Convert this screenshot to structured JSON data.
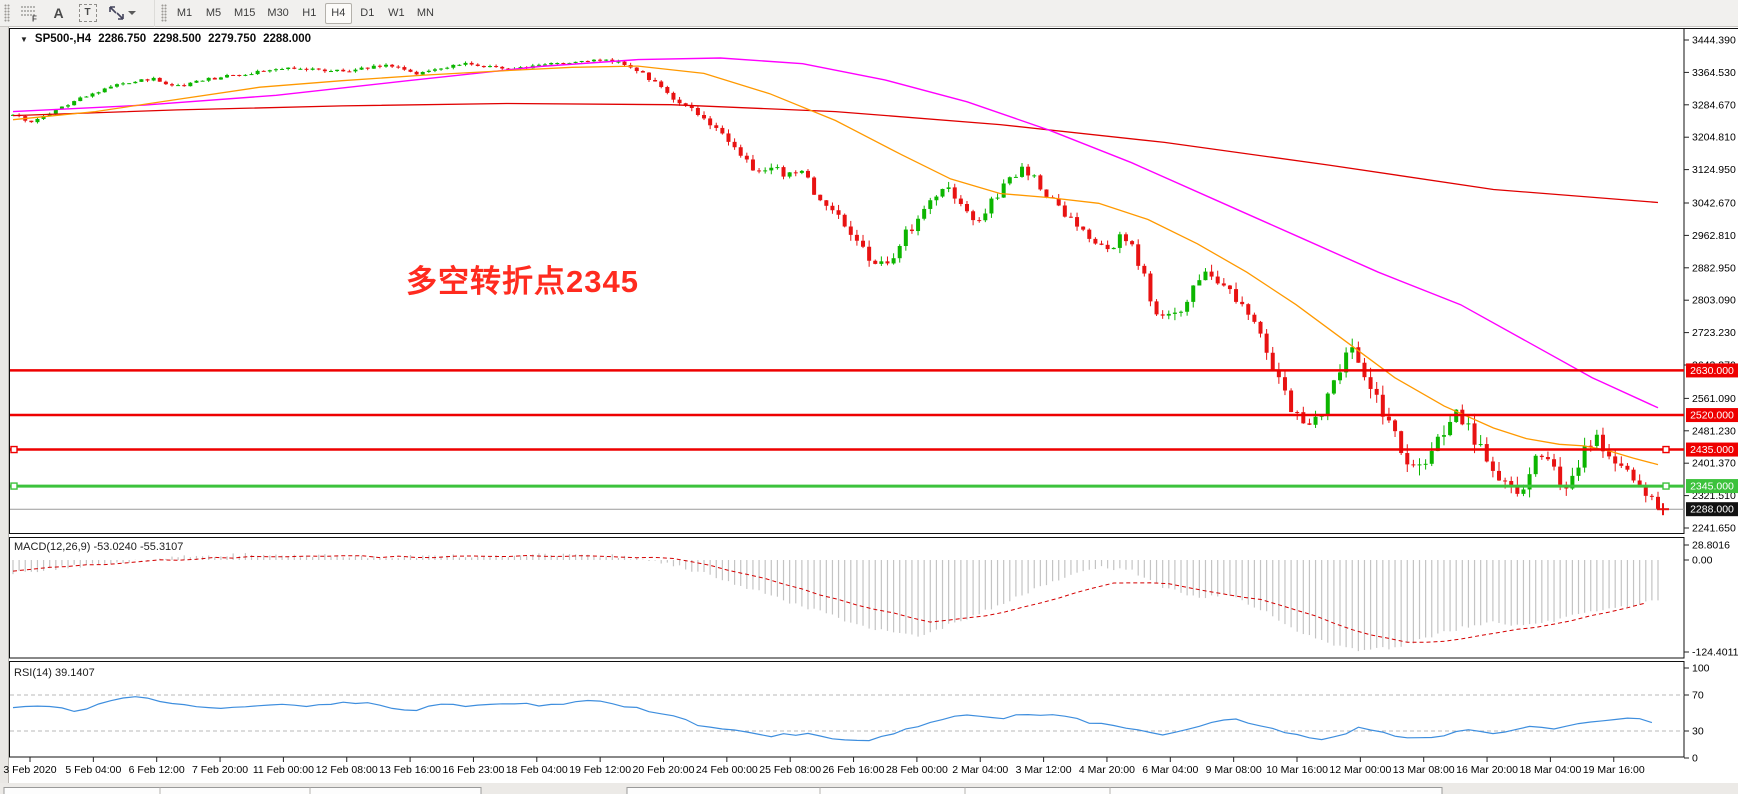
{
  "toolbar": {
    "tools": [
      {
        "name": "fibonacci",
        "glyph": "F"
      },
      {
        "name": "text",
        "glyph": "A"
      },
      {
        "name": "text-label",
        "glyph": "T"
      },
      {
        "name": "arrows",
        "glyph": ""
      }
    ],
    "timeframes": [
      "M1",
      "M5",
      "M15",
      "M30",
      "H1",
      "H4",
      "D1",
      "W1",
      "MN"
    ],
    "active_timeframe": "H4"
  },
  "chart": {
    "header": {
      "expander_glyph": "▼",
      "symbol_tf": "SP500-,H4",
      "open": "2286.750",
      "high": "2298.500",
      "low": "2279.750",
      "close": "2288.000"
    },
    "annotation": {
      "text": "多空转折点2345",
      "color": "#ff2b1f"
    },
    "macd_header": {
      "name": "MACD(12,26,9)",
      "value": "-53.0240",
      "signal": "-55.3107"
    },
    "rsi_header": {
      "name": "RSI(14)",
      "value": "39.1407"
    }
  },
  "chart_data": {
    "type": "candlestick-with-indicators",
    "symbol": "SP500-",
    "timeframe": "H4",
    "bars": 270,
    "ohlc_current": {
      "open": 2286.75,
      "high": 2298.5,
      "low": 2279.75,
      "close": 2288.0
    },
    "y_axis": {
      "top_value": 3444.39,
      "bottom_value": 2241.65,
      "labels": [
        3444.39,
        3364.53,
        3284.67,
        3204.81,
        3124.95,
        3042.67,
        2962.81,
        2882.95,
        2803.09,
        2723.23,
        2643.37,
        2561.09,
        2481.23,
        2401.37,
        2321.51,
        2241.65
      ]
    },
    "time_axis": {
      "labels": [
        "3 Feb 2020",
        "5 Feb 04:00",
        "6 Feb 12:00",
        "7 Feb 20:00",
        "11 Feb 00:00",
        "12 Feb 08:00",
        "13 Feb 16:00",
        "16 Feb 23:00",
        "18 Feb 04:00",
        "19 Feb 12:00",
        "20 Feb 20:00",
        "24 Feb 00:00",
        "25 Feb 08:00",
        "26 Feb 16:00",
        "28 Feb 00:00",
        "2 Mar 04:00",
        "3 Mar 12:00",
        "4 Mar 20:00",
        "6 Mar 04:00",
        "9 Mar 08:00",
        "10 Mar 16:00",
        "12 Mar 00:00",
        "13 Mar 08:00",
        "16 Mar 20:00",
        "18 Mar 04:00",
        "19 Mar 16:00"
      ]
    },
    "levels": [
      {
        "value": 2630.0,
        "label": "2630.000",
        "style": "red",
        "handles": false
      },
      {
        "value": 2520.0,
        "label": "2520.000",
        "style": "red",
        "handles": false
      },
      {
        "value": 2435.0,
        "label": "2435.000",
        "style": "red",
        "handles": true
      },
      {
        "value": 2345.0,
        "label": "2345.000",
        "style": "green",
        "handles": true
      }
    ],
    "current_price": {
      "value": 2288.0,
      "label": "2288.000"
    },
    "price_path": [
      [
        0,
        3260
      ],
      [
        0.01,
        3243
      ],
      [
        0.025,
        3268
      ],
      [
        0.045,
        3308
      ],
      [
        0.065,
        3338
      ],
      [
        0.085,
        3348
      ],
      [
        0.1,
        3330
      ],
      [
        0.115,
        3345
      ],
      [
        0.13,
        3356
      ],
      [
        0.15,
        3366
      ],
      [
        0.165,
        3376
      ],
      [
        0.185,
        3371
      ],
      [
        0.2,
        3367
      ],
      [
        0.215,
        3377
      ],
      [
        0.23,
        3381
      ],
      [
        0.245,
        3363
      ],
      [
        0.26,
        3377
      ],
      [
        0.275,
        3386
      ],
      [
        0.29,
        3379
      ],
      [
        0.305,
        3371
      ],
      [
        0.32,
        3384
      ],
      [
        0.335,
        3390
      ],
      [
        0.35,
        3392
      ],
      [
        0.36,
        3396
      ],
      [
        0.375,
        3381
      ],
      [
        0.39,
        3340
      ],
      [
        0.405,
        3292
      ],
      [
        0.42,
        3252
      ],
      [
        0.435,
        3192
      ],
      [
        0.45,
        3132
      ],
      [
        0.465,
        3122
      ],
      [
        0.48,
        3112
      ],
      [
        0.495,
        3032
      ],
      [
        0.51,
        2962
      ],
      [
        0.525,
        2882
      ],
      [
        0.535,
        2918
      ],
      [
        0.545,
        2978
      ],
      [
        0.555,
        3038
      ],
      [
        0.565,
        3088
      ],
      [
        0.575,
        3042
      ],
      [
        0.585,
        2992
      ],
      [
        0.595,
        3048
      ],
      [
        0.605,
        3098
      ],
      [
        0.615,
        3126
      ],
      [
        0.625,
        3082
      ],
      [
        0.635,
        3032
      ],
      [
        0.645,
        2992
      ],
      [
        0.655,
        2952
      ],
      [
        0.665,
        2922
      ],
      [
        0.675,
        2968
      ],
      [
        0.685,
        2892
      ],
      [
        0.695,
        2772
      ],
      [
        0.705,
        2752
      ],
      [
        0.715,
        2818
      ],
      [
        0.725,
        2878
      ],
      [
        0.735,
        2842
      ],
      [
        0.745,
        2792
      ],
      [
        0.755,
        2742
      ],
      [
        0.765,
        2642
      ],
      [
        0.775,
        2552
      ],
      [
        0.785,
        2482
      ],
      [
        0.795,
        2522
      ],
      [
        0.805,
        2618
      ],
      [
        0.815,
        2692
      ],
      [
        0.825,
        2602
      ],
      [
        0.835,
        2512
      ],
      [
        0.845,
        2422
      ],
      [
        0.855,
        2392
      ],
      [
        0.865,
        2452
      ],
      [
        0.875,
        2522
      ],
      [
        0.885,
        2482
      ],
      [
        0.895,
        2422
      ],
      [
        0.905,
        2362
      ],
      [
        0.915,
        2302
      ],
      [
        0.925,
        2418
      ],
      [
        0.935,
        2382
      ],
      [
        0.945,
        2332
      ],
      [
        0.955,
        2438
      ],
      [
        0.965,
        2458
      ],
      [
        0.975,
        2408
      ],
      [
        0.985,
        2352
      ],
      [
        0.995,
        2312
      ],
      [
        1,
        2288
      ]
    ],
    "volatility": [
      [
        0,
        7
      ],
      [
        0.35,
        7
      ],
      [
        0.4,
        12
      ],
      [
        0.45,
        20
      ],
      [
        0.52,
        28
      ],
      [
        0.6,
        22
      ],
      [
        0.66,
        18
      ],
      [
        0.7,
        30
      ],
      [
        0.75,
        28
      ],
      [
        0.8,
        36
      ],
      [
        0.85,
        42
      ],
      [
        0.9,
        42
      ],
      [
        0.95,
        40
      ],
      [
        1,
        30
      ]
    ],
    "moving_averages": [
      {
        "name": "ma-slow",
        "color": "#e00000",
        "width": 1.3,
        "points": [
          [
            0,
            3258
          ],
          [
            0.1,
            3272
          ],
          [
            0.2,
            3282
          ],
          [
            0.3,
            3288
          ],
          [
            0.4,
            3285
          ],
          [
            0.5,
            3268
          ],
          [
            0.6,
            3236
          ],
          [
            0.7,
            3192
          ],
          [
            0.8,
            3136
          ],
          [
            0.9,
            3076
          ],
          [
            1,
            3044
          ]
        ]
      },
      {
        "name": "ma-mid",
        "color": "#ff00ff",
        "width": 1.4,
        "points": [
          [
            0,
            3268
          ],
          [
            0.08,
            3284
          ],
          [
            0.16,
            3308
          ],
          [
            0.24,
            3344
          ],
          [
            0.32,
            3379
          ],
          [
            0.38,
            3396
          ],
          [
            0.43,
            3400
          ],
          [
            0.48,
            3386
          ],
          [
            0.53,
            3346
          ],
          [
            0.58,
            3292
          ],
          [
            0.63,
            3222
          ],
          [
            0.68,
            3142
          ],
          [
            0.73,
            3052
          ],
          [
            0.78,
            2962
          ],
          [
            0.83,
            2872
          ],
          [
            0.88,
            2792
          ],
          [
            0.92,
            2702
          ],
          [
            0.96,
            2612
          ],
          [
            1,
            2538
          ]
        ]
      },
      {
        "name": "ma-fast",
        "color": "#ff9900",
        "width": 1.3,
        "points": [
          [
            0,
            3248
          ],
          [
            0.05,
            3268
          ],
          [
            0.1,
            3298
          ],
          [
            0.15,
            3328
          ],
          [
            0.2,
            3344
          ],
          [
            0.25,
            3358
          ],
          [
            0.3,
            3369
          ],
          [
            0.34,
            3377
          ],
          [
            0.38,
            3380
          ],
          [
            0.42,
            3362
          ],
          [
            0.46,
            3312
          ],
          [
            0.5,
            3246
          ],
          [
            0.54,
            3162
          ],
          [
            0.57,
            3102
          ],
          [
            0.6,
            3066
          ],
          [
            0.63,
            3056
          ],
          [
            0.66,
            3042
          ],
          [
            0.69,
            3002
          ],
          [
            0.72,
            2942
          ],
          [
            0.75,
            2872
          ],
          [
            0.78,
            2792
          ],
          [
            0.81,
            2702
          ],
          [
            0.84,
            2612
          ],
          [
            0.87,
            2542
          ],
          [
            0.9,
            2488
          ],
          [
            0.92,
            2462
          ],
          [
            0.94,
            2448
          ],
          [
            0.955,
            2444
          ],
          [
            0.97,
            2432
          ],
          [
            0.985,
            2414
          ],
          [
            1,
            2398
          ]
        ]
      }
    ],
    "macd": {
      "params": "12,26,9",
      "value": -53.024,
      "signal_value": -55.3107,
      "axis_labels": [
        28.8016,
        0.0,
        -124.4011
      ],
      "histogram": [
        [
          0,
          -18
        ],
        [
          0.03,
          -10
        ],
        [
          0.06,
          -4
        ],
        [
          0.1,
          4
        ],
        [
          0.14,
          7
        ],
        [
          0.18,
          6
        ],
        [
          0.22,
          4
        ],
        [
          0.26,
          5
        ],
        [
          0.3,
          6
        ],
        [
          0.34,
          7
        ],
        [
          0.37,
          5
        ],
        [
          0.4,
          -5
        ],
        [
          0.43,
          -25
        ],
        [
          0.46,
          -48
        ],
        [
          0.49,
          -70
        ],
        [
          0.52,
          -92
        ],
        [
          0.55,
          -102
        ],
        [
          0.58,
          -80
        ],
        [
          0.61,
          -50
        ],
        [
          0.64,
          -22
        ],
        [
          0.66,
          -10
        ],
        [
          0.68,
          -15
        ],
        [
          0.7,
          -38
        ],
        [
          0.72,
          -52
        ],
        [
          0.74,
          -48
        ],
        [
          0.76,
          -68
        ],
        [
          0.78,
          -95
        ],
        [
          0.8,
          -112
        ],
        [
          0.82,
          -124
        ],
        [
          0.84,
          -118
        ],
        [
          0.86,
          -105
        ],
        [
          0.88,
          -92
        ],
        [
          0.9,
          -85
        ],
        [
          0.92,
          -88
        ],
        [
          0.94,
          -80
        ],
        [
          0.955,
          -72
        ],
        [
          0.97,
          -68
        ],
        [
          0.985,
          -60
        ],
        [
          1,
          -53
        ]
      ],
      "signal": [
        [
          0,
          -14
        ],
        [
          0.04,
          -8
        ],
        [
          0.08,
          -2
        ],
        [
          0.12,
          3
        ],
        [
          0.16,
          5
        ],
        [
          0.2,
          5
        ],
        [
          0.24,
          4
        ],
        [
          0.28,
          5
        ],
        [
          0.32,
          6
        ],
        [
          0.36,
          5
        ],
        [
          0.4,
          2
        ],
        [
          0.44,
          -15
        ],
        [
          0.48,
          -40
        ],
        [
          0.52,
          -65
        ],
        [
          0.56,
          -85
        ],
        [
          0.6,
          -72
        ],
        [
          0.64,
          -48
        ],
        [
          0.67,
          -30
        ],
        [
          0.7,
          -32
        ],
        [
          0.73,
          -45
        ],
        [
          0.76,
          -55
        ],
        [
          0.79,
          -75
        ],
        [
          0.82,
          -98
        ],
        [
          0.85,
          -112
        ],
        [
          0.88,
          -108
        ],
        [
          0.91,
          -96
        ],
        [
          0.94,
          -85
        ],
        [
          0.97,
          -70
        ],
        [
          1,
          -55.31
        ]
      ]
    },
    "rsi": {
      "period": 14,
      "value": 39.1407,
      "axis_labels": [
        100,
        70,
        30,
        0
      ],
      "guide_levels": [
        70,
        30
      ],
      "points": [
        [
          0,
          55
        ],
        [
          0.02,
          58
        ],
        [
          0.04,
          52
        ],
        [
          0.06,
          65
        ],
        [
          0.08,
          68
        ],
        [
          0.1,
          60
        ],
        [
          0.12,
          55
        ],
        [
          0.14,
          58
        ],
        [
          0.16,
          60
        ],
        [
          0.18,
          57
        ],
        [
          0.2,
          62
        ],
        [
          0.22,
          60
        ],
        [
          0.24,
          52
        ],
        [
          0.26,
          60
        ],
        [
          0.28,
          58
        ],
        [
          0.3,
          62
        ],
        [
          0.32,
          58
        ],
        [
          0.34,
          62
        ],
        [
          0.36,
          63
        ],
        [
          0.38,
          55
        ],
        [
          0.4,
          48
        ],
        [
          0.42,
          35
        ],
        [
          0.44,
          30
        ],
        [
          0.46,
          25
        ],
        [
          0.48,
          27
        ],
        [
          0.5,
          22
        ],
        [
          0.52,
          20
        ],
        [
          0.54,
          30
        ],
        [
          0.56,
          42
        ],
        [
          0.58,
          48
        ],
        [
          0.6,
          44
        ],
        [
          0.62,
          50
        ],
        [
          0.64,
          45
        ],
        [
          0.66,
          38
        ],
        [
          0.68,
          33
        ],
        [
          0.7,
          25
        ],
        [
          0.72,
          35
        ],
        [
          0.74,
          45
        ],
        [
          0.76,
          35
        ],
        [
          0.78,
          25
        ],
        [
          0.8,
          20
        ],
        [
          0.82,
          35
        ],
        [
          0.84,
          25
        ],
        [
          0.86,
          20
        ],
        [
          0.88,
          32
        ],
        [
          0.9,
          27
        ],
        [
          0.92,
          35
        ],
        [
          0.94,
          33
        ],
        [
          0.96,
          40
        ],
        [
          0.98,
          45
        ],
        [
          1,
          39.14
        ]
      ]
    },
    "colors": {
      "up": "#0cb500",
      "down": "#e81212",
      "hline_red": "#ee0000",
      "hline_green": "#3cc23c",
      "bid_line": "#9a9a9a",
      "current_tag_bg": "#111111",
      "macd_hist": "#c4c4c4",
      "macd_signal": "#d40000",
      "rsi_line": "#3e8ede",
      "panel_border": "#101010"
    }
  }
}
